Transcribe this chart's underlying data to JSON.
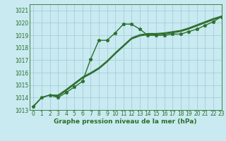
{
  "title": "Graphe pression niveau de la mer (hPa)",
  "bg_color": "#c8eaf0",
  "grid_color": "#a0c8d8",
  "line_color": "#2d6e2d",
  "xlim": [
    -0.5,
    23
  ],
  "ylim": [
    1013,
    1021.5
  ],
  "xticks": [
    0,
    1,
    2,
    3,
    4,
    5,
    6,
    7,
    8,
    9,
    10,
    11,
    12,
    13,
    14,
    15,
    16,
    17,
    18,
    19,
    20,
    21,
    22,
    23
  ],
  "yticks": [
    1013,
    1014,
    1015,
    1016,
    1017,
    1018,
    1019,
    1020,
    1021
  ],
  "series": [
    {
      "x": [
        0,
        1,
        2,
        3,
        4,
        5,
        6,
        7,
        8,
        9,
        10,
        11,
        12,
        13,
        14,
        15,
        16,
        17,
        18,
        19,
        20,
        21,
        22,
        23
      ],
      "y": [
        1013.3,
        1014.0,
        1014.2,
        1014.0,
        1014.4,
        1014.85,
        1015.3,
        1017.1,
        1018.6,
        1018.6,
        1019.2,
        1019.9,
        1019.9,
        1019.5,
        1019.0,
        1019.0,
        1019.0,
        1019.1,
        1019.1,
        1019.3,
        1019.5,
        1019.8,
        1020.1,
        1020.5
      ],
      "marker": "*",
      "markersize": 3.5,
      "lw": 1.0,
      "zorder": 3
    },
    {
      "x": [
        0,
        1,
        2,
        3,
        4,
        5,
        6,
        7,
        8,
        9,
        10,
        11,
        12,
        13,
        14,
        15,
        16,
        17,
        18,
        19,
        20,
        21,
        22,
        23
      ],
      "y": [
        1013.3,
        1014.0,
        1014.2,
        1014.1,
        1014.55,
        1015.05,
        1015.55,
        1015.9,
        1016.3,
        1016.85,
        1017.5,
        1018.1,
        1018.7,
        1018.95,
        1019.05,
        1019.05,
        1019.1,
        1019.2,
        1019.3,
        1019.5,
        1019.75,
        1020.0,
        1020.25,
        1020.5
      ],
      "marker": null,
      "markersize": 0,
      "lw": 0.9,
      "zorder": 2
    },
    {
      "x": [
        0,
        1,
        2,
        3,
        4,
        5,
        6,
        7,
        8,
        9,
        10,
        11,
        12,
        13,
        14,
        15,
        16,
        17,
        18,
        19,
        20,
        21,
        22,
        23
      ],
      "y": [
        1013.3,
        1014.0,
        1014.2,
        1014.15,
        1014.6,
        1015.1,
        1015.6,
        1015.95,
        1016.35,
        1016.9,
        1017.55,
        1018.15,
        1018.75,
        1019.0,
        1019.1,
        1019.1,
        1019.15,
        1019.25,
        1019.35,
        1019.55,
        1019.8,
        1020.05,
        1020.3,
        1020.5
      ],
      "marker": null,
      "markersize": 0,
      "lw": 0.9,
      "zorder": 2
    },
    {
      "x": [
        0,
        1,
        2,
        3,
        4,
        5,
        6,
        7,
        8,
        9,
        10,
        11,
        12,
        13,
        14,
        15,
        16,
        17,
        18,
        19,
        20,
        21,
        22,
        23
      ],
      "y": [
        1013.3,
        1014.0,
        1014.2,
        1014.2,
        1014.65,
        1015.15,
        1015.65,
        1016.0,
        1016.4,
        1016.95,
        1017.6,
        1018.2,
        1018.8,
        1019.05,
        1019.15,
        1019.15,
        1019.2,
        1019.3,
        1019.4,
        1019.6,
        1019.85,
        1020.1,
        1020.35,
        1020.55
      ],
      "marker": null,
      "markersize": 0,
      "lw": 0.9,
      "zorder": 2
    }
  ],
  "title_fontsize": 6.5,
  "tick_fontsize": 5.5
}
